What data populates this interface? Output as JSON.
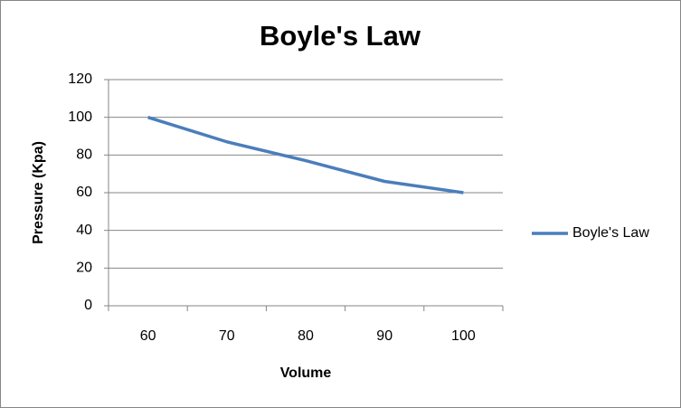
{
  "chart_data": {
    "type": "line",
    "title": "Boyle's Law",
    "x_label": "Volume",
    "y_label": "Pressure (Kpa)",
    "categories": [
      "60",
      "70",
      "80",
      "90",
      "100"
    ],
    "series": [
      {
        "name": "Boyle's Law",
        "color": "#4a7ebb",
        "values": [
          100,
          87,
          77,
          66,
          60
        ]
      }
    ],
    "ylim": [
      0,
      120
    ],
    "yticks": [
      0,
      20,
      40,
      60,
      80,
      100,
      120
    ],
    "grid": true,
    "legend": "right"
  }
}
